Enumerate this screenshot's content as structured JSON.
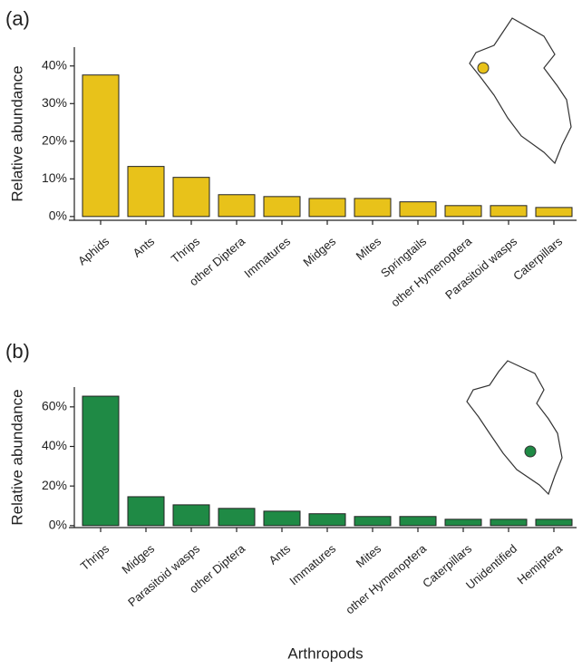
{
  "chart_data": [
    {
      "type": "bar",
      "panel_label": "(a)",
      "ylabel": "Relative abundance",
      "color": "#e8c21a",
      "categories": [
        "Aphids",
        "Ants",
        "Thrips",
        "other Diptera",
        "Immatures",
        "Midges",
        "Mites",
        "Springtails",
        "other Hymenoptera",
        "Parasitoid wasps",
        "Caterpillars"
      ],
      "values": [
        37.6,
        13.3,
        10.4,
        5.8,
        5.3,
        4.8,
        4.8,
        3.9,
        2.9,
        2.9,
        2.4
      ],
      "ylim": [
        -1,
        45
      ],
      "yticks": [
        {
          "value": 0,
          "label": "0%"
        },
        {
          "value": 10,
          "label": "10%"
        },
        {
          "value": 20,
          "label": "20%"
        },
        {
          "value": 30,
          "label": "30%"
        },
        {
          "value": 40,
          "label": "40%"
        }
      ]
    },
    {
      "type": "bar",
      "panel_label": "(b)",
      "ylabel": "Relative abundance",
      "xlabel": "Arthropods",
      "color": "#1f8a45",
      "categories": [
        "Thrips",
        "Midges",
        "Parasitoid wasps",
        "other Diptera",
        "Ants",
        "Immatures",
        "Mites",
        "other Hymenoptera",
        "Caterpillars",
        "Unidentified",
        "Hemiptera"
      ],
      "values": [
        65.4,
        14.6,
        10.5,
        8.7,
        7.3,
        6.0,
        4.6,
        4.6,
        3.2,
        3.2,
        3.2
      ],
      "ylim": [
        -1,
        70
      ],
      "yticks": [
        {
          "value": 0,
          "label": "0%"
        },
        {
          "value": 20,
          "label": "20%"
        },
        {
          "value": 40,
          "label": "40%"
        },
        {
          "value": 60,
          "label": "60%"
        }
      ]
    }
  ]
}
